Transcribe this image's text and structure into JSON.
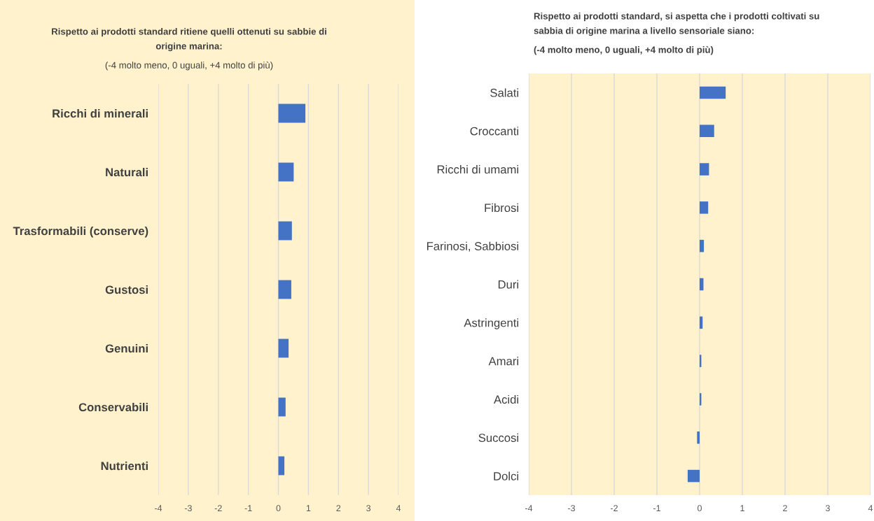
{
  "chart_data": [
    {
      "type": "bar",
      "orientation": "horizontal",
      "title": "Rispetto ai prodotti standard ritiene quelli ottenuti su sabbie di\norigine marina:",
      "subtitle": "(-4 molto meno, 0 uguali, +4 molto di più)",
      "categories": [
        "Ricchi di minerali",
        "Naturali",
        "Trasformabili (conserve)",
        "Gustosi",
        "Genuini",
        "Conservabili",
        "Nutrienti"
      ],
      "values": [
        0.9,
        0.51,
        0.45,
        0.43,
        0.34,
        0.24,
        0.2
      ],
      "color": "#4472c4",
      "xlim": [
        -4,
        4
      ],
      "xticks": [
        -4,
        -3,
        -2,
        -1,
        0,
        1,
        2,
        3,
        4
      ],
      "grid": "x"
    },
    {
      "type": "bar",
      "orientation": "horizontal",
      "title": "Rispetto ai prodotti standard, si aspetta che i prodotti coltivati su\nsabbia di origine marina a livello sensoriale siano:",
      "subtitle": "(-4 molto meno, 0 uguali, +4 molto di più)",
      "categories": [
        "Salati",
        "Croccanti",
        "Ricchi di umami",
        "Fibrosi",
        "Farinosi, Sabbiosi",
        "Duri",
        "Astringenti",
        "Amari",
        "Acidi",
        "Succosi",
        "Dolci"
      ],
      "values": [
        0.61,
        0.34,
        0.22,
        0.2,
        0.1,
        0.09,
        0.07,
        0.04,
        0.04,
        -0.06,
        -0.28
      ],
      "color": "#4472c4",
      "xlim": [
        -4,
        4
      ],
      "xticks": [
        -4,
        -3,
        -2,
        -1,
        0,
        1,
        2,
        3,
        4
      ],
      "grid": "x"
    }
  ]
}
